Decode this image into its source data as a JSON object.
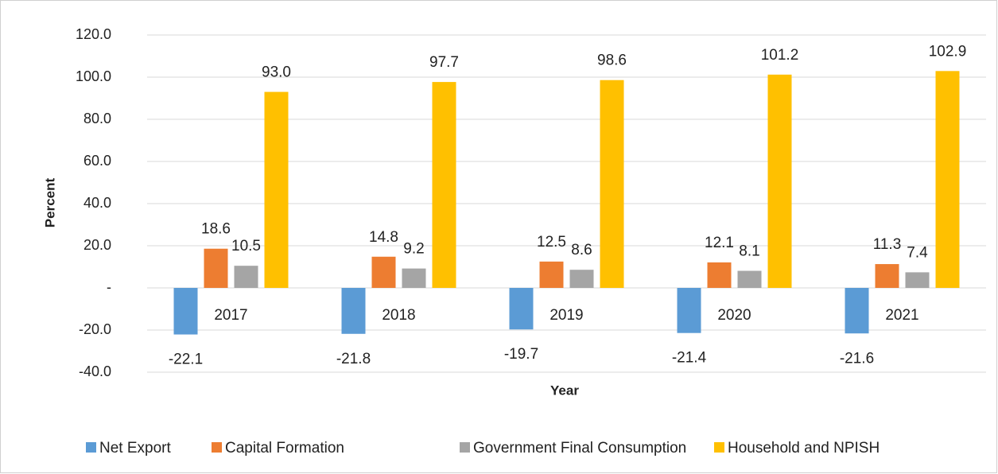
{
  "chart_data": {
    "type": "bar",
    "categories": [
      "2017",
      "2018",
      "2019",
      "2020",
      "2021"
    ],
    "series": [
      {
        "name": "Net Export",
        "color": "#5b9bd5",
        "values": [
          -22.1,
          -21.8,
          -19.7,
          -21.4,
          -21.6
        ]
      },
      {
        "name": "Capital Formation",
        "color": "#ed7d31",
        "values": [
          18.6,
          14.8,
          12.5,
          12.1,
          11.3
        ]
      },
      {
        "name": "Government Final Consumption",
        "color": "#a5a5a5",
        "values": [
          10.5,
          9.2,
          8.6,
          8.1,
          7.4
        ]
      },
      {
        "name": "Household and NPISH",
        "color": "#ffc000",
        "values": [
          93,
          97.7,
          98.6,
          101.2,
          102.9
        ],
        "value_labels": [
          "93.0",
          "97.7",
          "98.6",
          "101.2",
          "102.9"
        ]
      }
    ],
    "xlabel": "Year",
    "ylabel": "Percent",
    "ylim": [
      -40,
      120
    ],
    "yticks": [
      {
        "value": -40,
        "label": "-40.0"
      },
      {
        "value": -20,
        "label": "-20.0"
      },
      {
        "value": 0,
        "label": "-"
      },
      {
        "value": 20,
        "label": "20.0"
      },
      {
        "value": 40,
        "label": "40.0"
      },
      {
        "value": 60,
        "label": "60.0"
      },
      {
        "value": 80,
        "label": "80.0"
      },
      {
        "value": 100,
        "label": "100.0"
      },
      {
        "value": 120,
        "label": "120.0"
      }
    ],
    "grid": true,
    "legend": "bottom"
  }
}
